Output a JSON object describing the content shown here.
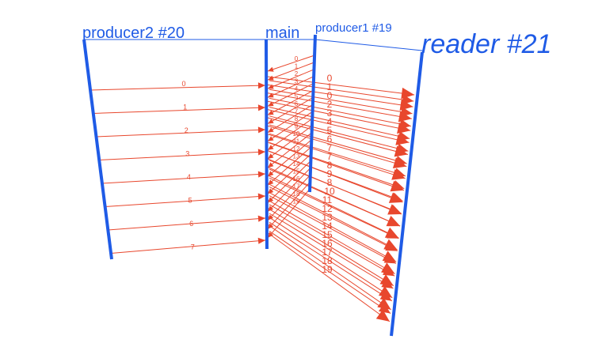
{
  "colors": {
    "thread": "#1f5be6",
    "message": "#e8472d",
    "background": "#ffffff"
  },
  "threads": {
    "producer2": {
      "label": "producer2 #20"
    },
    "main": {
      "label": "main"
    },
    "producer1": {
      "label": "producer1 #19"
    },
    "reader": {
      "label": "reader #21"
    }
  },
  "messages": {
    "producer2_to_main": [
      "0",
      "1",
      "2",
      "3",
      "4",
      "5",
      "6",
      "7"
    ],
    "producer1_to_main": [
      "0",
      "1",
      "2",
      "3",
      "4",
      "5",
      "6",
      "7",
      "8",
      "9",
      "10",
      "11",
      "12",
      "13",
      "14",
      "15",
      "16",
      "17",
      "18",
      "19"
    ],
    "main_to_reader_main_side": [
      "0",
      "1",
      "2",
      "3",
      "4",
      "5",
      "6",
      "7",
      "8",
      "9",
      "10",
      "11",
      "12",
      "13",
      "14",
      "15",
      "16",
      "17",
      "18",
      "19"
    ],
    "main_to_reader_reader_side": [
      "0",
      "1",
      "0",
      "2",
      "3",
      "4",
      "5",
      "6",
      "7",
      "7",
      "8",
      "9",
      "8",
      "10",
      "11",
      "12",
      "13",
      "14",
      "15",
      "16",
      "17",
      "18",
      "19"
    ]
  }
}
